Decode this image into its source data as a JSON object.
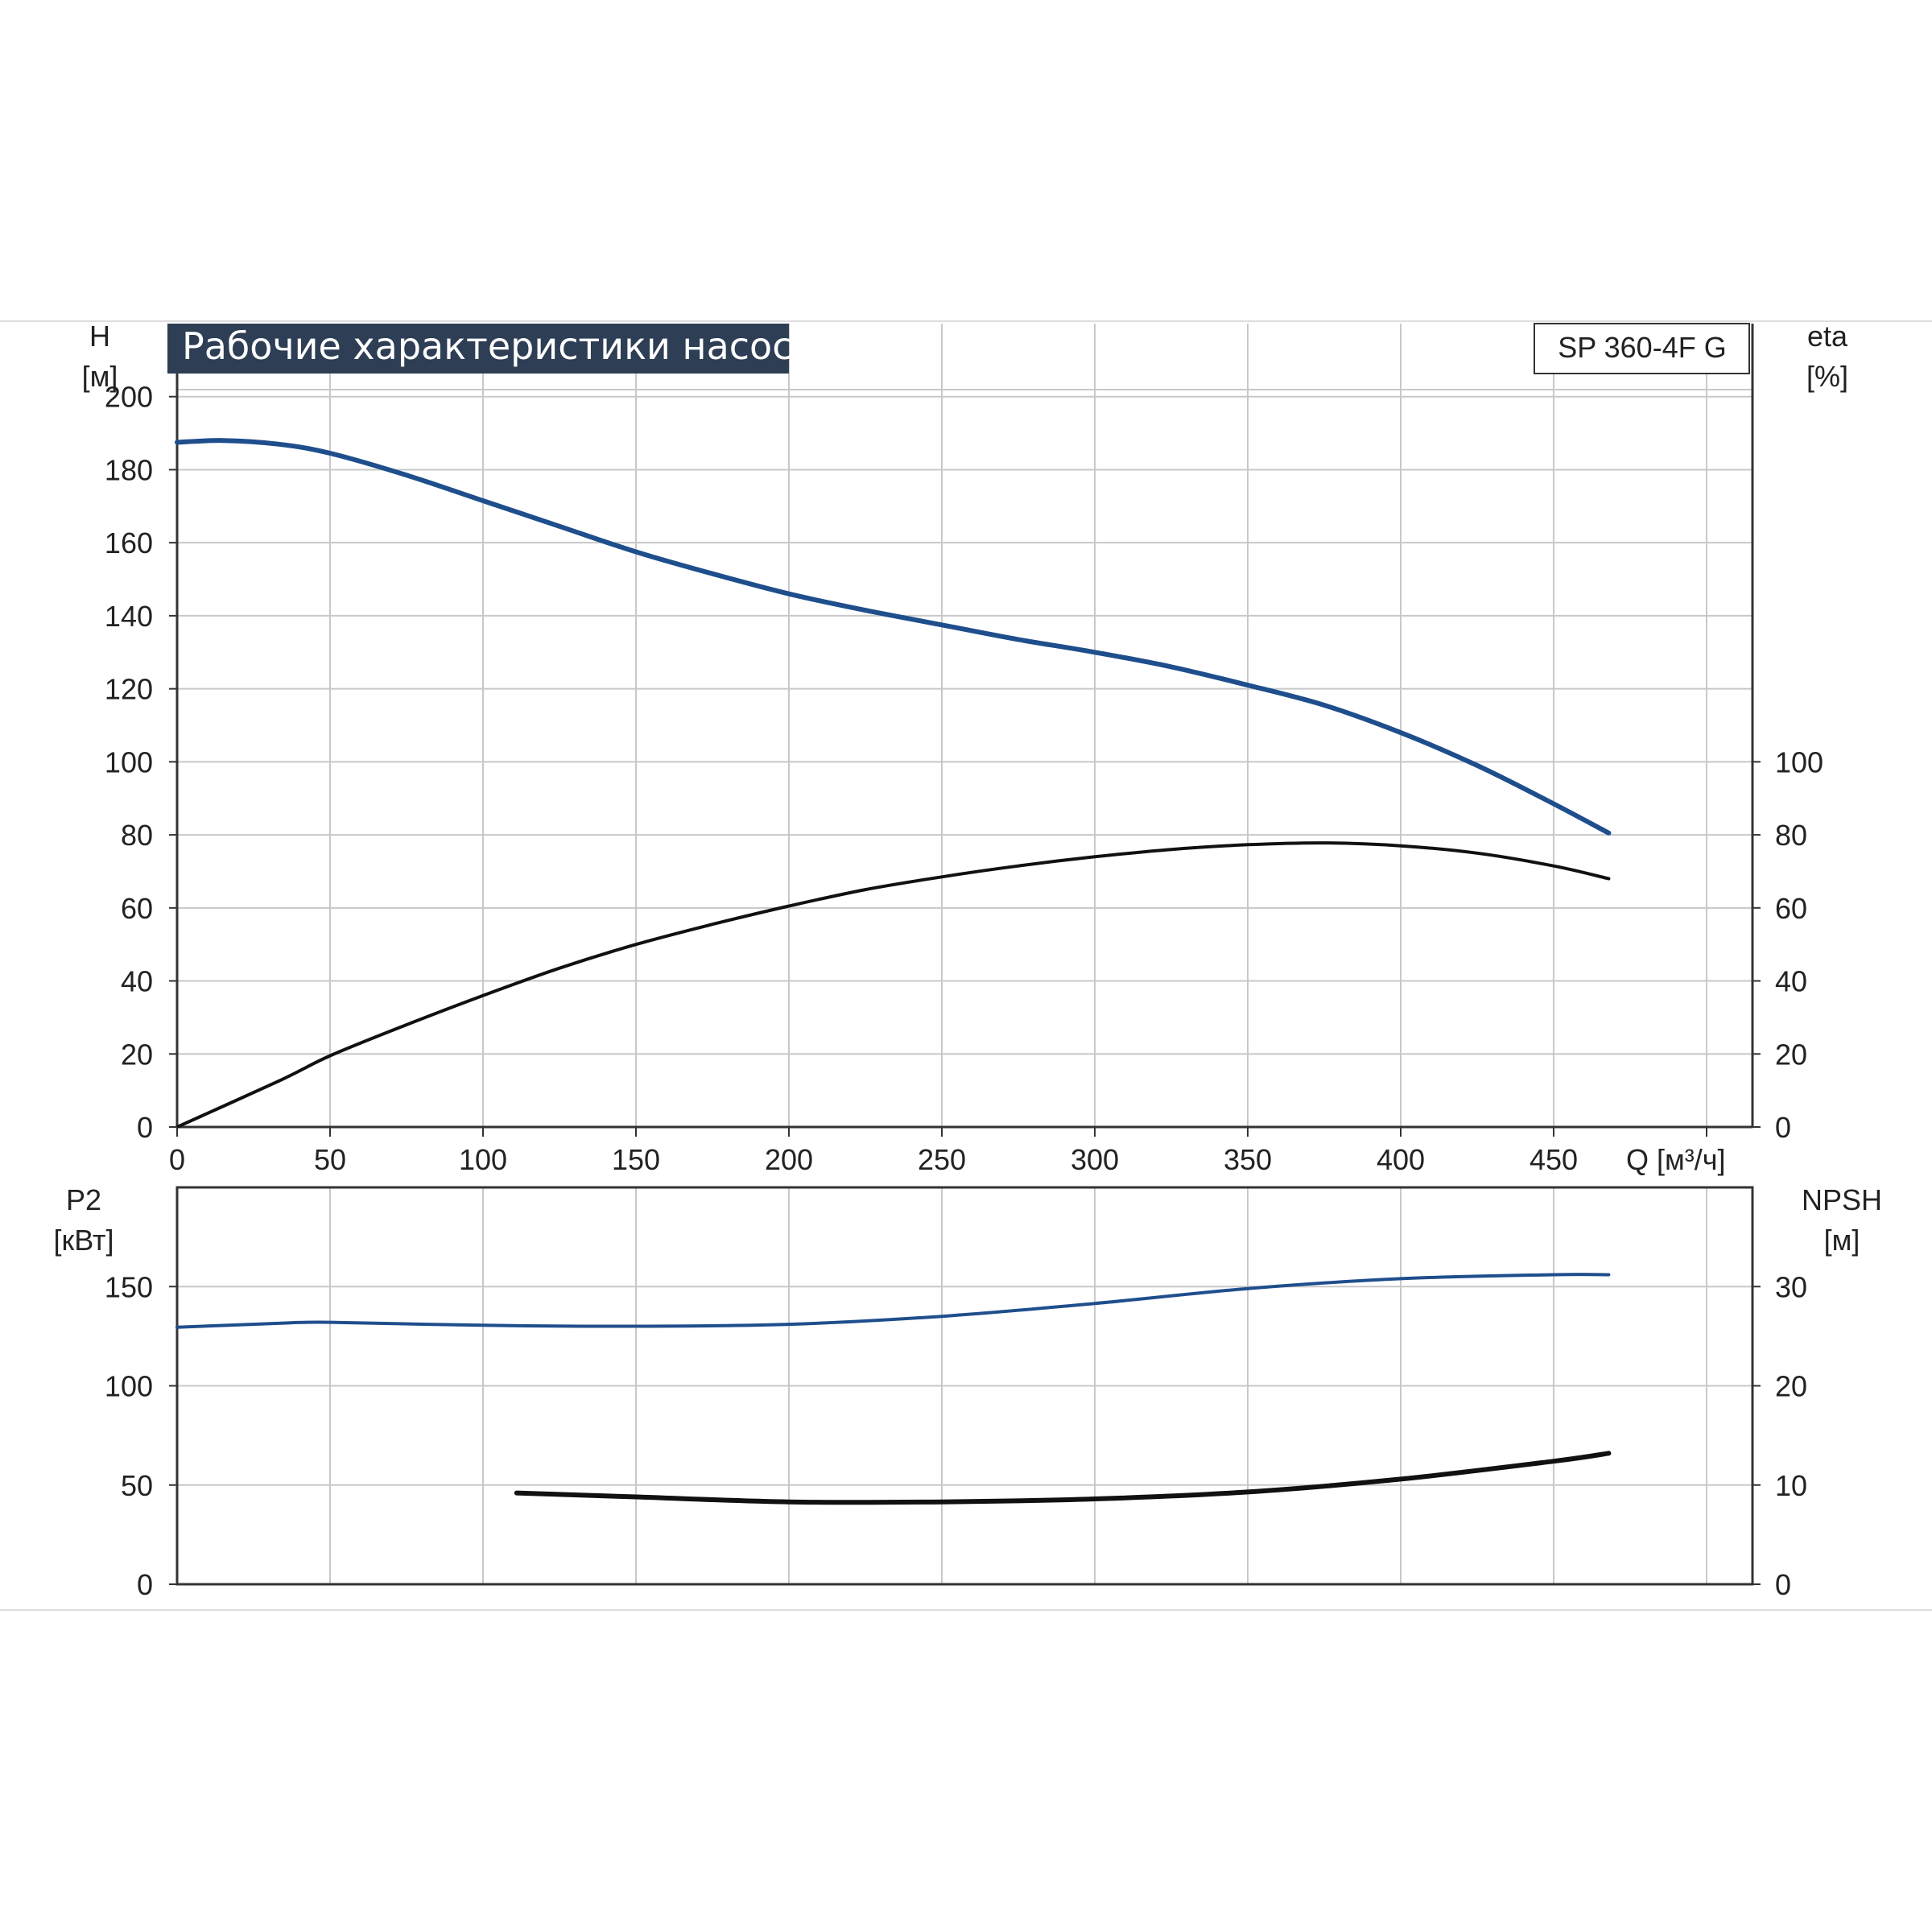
{
  "title": "Рабочие характеристики насоса",
  "model_label": "SP 360-4F G",
  "colors": {
    "head_curve": "#1f4e8c",
    "efficiency_curve": "#111111",
    "power_curve": "#1f4e8c",
    "npsh_curve": "#111111",
    "title_bg": "#2d3e55",
    "grid": "#c8c8c8",
    "axis": "#333333"
  },
  "chart_data": [
    {
      "type": "line",
      "panel": "top",
      "x_axis": {
        "label": "Q [м³/ч]",
        "lim": [
          0,
          515
        ],
        "ticks": [
          0,
          50,
          100,
          150,
          200,
          250,
          300,
          350,
          400,
          450
        ]
      },
      "y_left": {
        "label": "H",
        "unit": "[м]",
        "lim": [
          0,
          220
        ],
        "ticks": [
          0,
          20,
          40,
          60,
          80,
          100,
          120,
          140,
          160,
          180,
          200
        ]
      },
      "y_right": {
        "label": "eta",
        "unit": "[%]",
        "lim": [
          0,
          220
        ],
        "ticks": [
          0,
          20,
          40,
          60,
          80,
          100
        ]
      },
      "grid": true,
      "series": [
        {
          "key": "head",
          "axis": "left",
          "x": [
            0,
            15,
            33,
            50,
            75,
            100,
            125,
            150,
            175,
            200,
            225,
            250,
            275,
            300,
            325,
            350,
            375,
            400,
            425,
            450,
            468
          ],
          "y": [
            187.5,
            188,
            187,
            184.5,
            178.5,
            171.5,
            164.5,
            157.5,
            151.5,
            146,
            141.5,
            137.5,
            133.5,
            130,
            126,
            121,
            115.5,
            108,
            99,
            88.5,
            80.5
          ]
        },
        {
          "key": "efficiency",
          "axis": "right",
          "x": [
            0,
            33,
            50,
            75,
            100,
            125,
            150,
            175,
            200,
            225,
            250,
            275,
            300,
            325,
            350,
            375,
            400,
            425,
            450,
            468
          ],
          "y": [
            0,
            12.5,
            19.5,
            28,
            36,
            43.5,
            50,
            55.5,
            60.5,
            65,
            68.5,
            71.5,
            74,
            76,
            77.3,
            77.8,
            77,
            75,
            71.5,
            68
          ]
        }
      ]
    },
    {
      "type": "line",
      "panel": "bottom",
      "x_axis": {
        "lim": [
          0,
          515
        ],
        "ticks": []
      },
      "y_left": {
        "label": "P2",
        "unit": "[кВт]",
        "lim": [
          0,
          200
        ],
        "ticks": [
          0,
          50,
          100,
          150
        ]
      },
      "y_right": {
        "label": "NPSH",
        "unit": "[м]",
        "lim": [
          0,
          40
        ],
        "ticks": [
          0,
          10,
          20,
          30
        ]
      },
      "grid": true,
      "series": [
        {
          "key": "power",
          "axis": "left",
          "x": [
            0,
            33,
            50,
            100,
            150,
            200,
            250,
            300,
            350,
            400,
            450,
            468
          ],
          "y": [
            129.5,
            131.5,
            132,
            130.5,
            130,
            131,
            135,
            141.5,
            149,
            154,
            156,
            156
          ]
        },
        {
          "key": "npsh",
          "axis": "right",
          "x": [
            111,
            150,
            200,
            250,
            300,
            350,
            400,
            450,
            468
          ],
          "y": [
            9.2,
            8.8,
            8.3,
            8.3,
            8.6,
            9.3,
            10.6,
            12.4,
            13.2
          ]
        }
      ]
    }
  ]
}
